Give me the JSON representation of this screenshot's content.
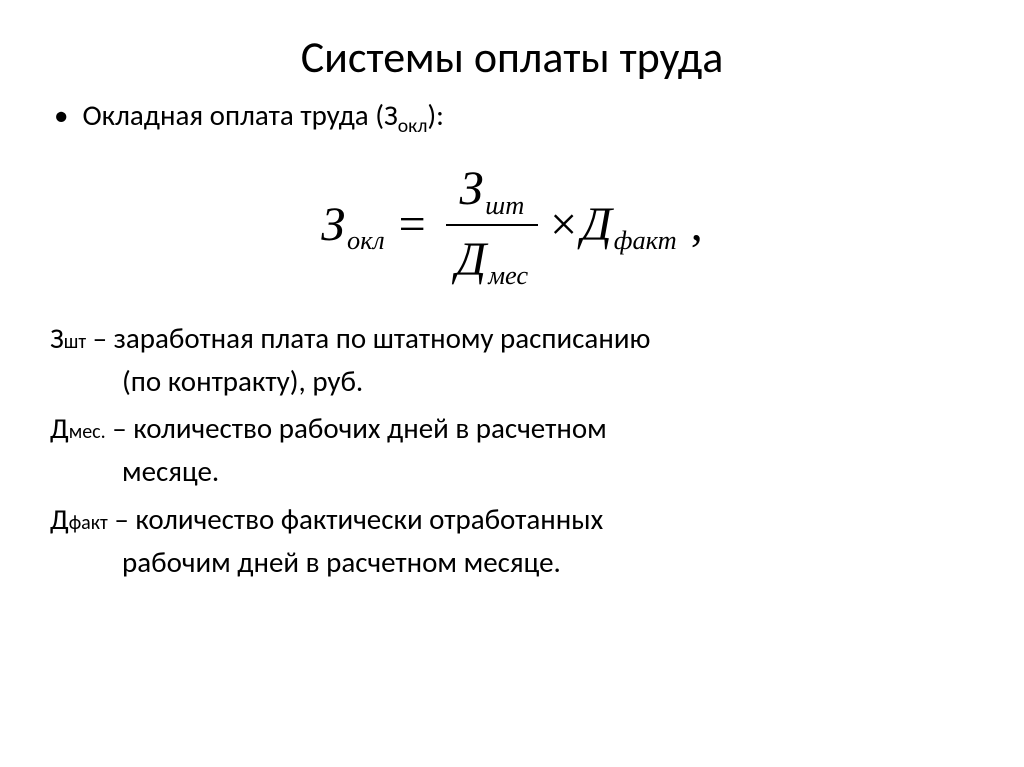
{
  "title": "Системы оплаты труда",
  "bullet_prefix": "Окладная оплата труда (",
  "bullet_var_base": "З",
  "bullet_var_sub": "окл",
  "bullet_suffix": "):",
  "formula": {
    "lhs_base": "З",
    "lhs_sub": "окл",
    "num_base": "З",
    "num_sub": "шт",
    "den_base": "Д",
    "den_sub": "мес",
    "rhs_base": "Д",
    "rhs_sub": "факт",
    "eq": "=",
    "times": "×",
    "comma": ","
  },
  "defs": [
    {
      "term_base": "З",
      "term_sub": "шт",
      "line1": " –  заработная плата по штатному расписанию",
      "line2": "(по контракту), руб."
    },
    {
      "term_base": "Д",
      "term_sub": "мес.",
      "line1": " –  количество рабочих дней в расчетном",
      "line2": "месяце."
    },
    {
      "term_base": "Д",
      "term_sub": "факт",
      "line1": " – количество фактически отработанных",
      "line2": "рабочим дней в расчетном месяце."
    }
  ],
  "colors": {
    "text": "#000000",
    "bg": "#ffffff"
  },
  "fontsizes": {
    "title": 44,
    "body": 29,
    "sub": 20,
    "formula": 48
  }
}
